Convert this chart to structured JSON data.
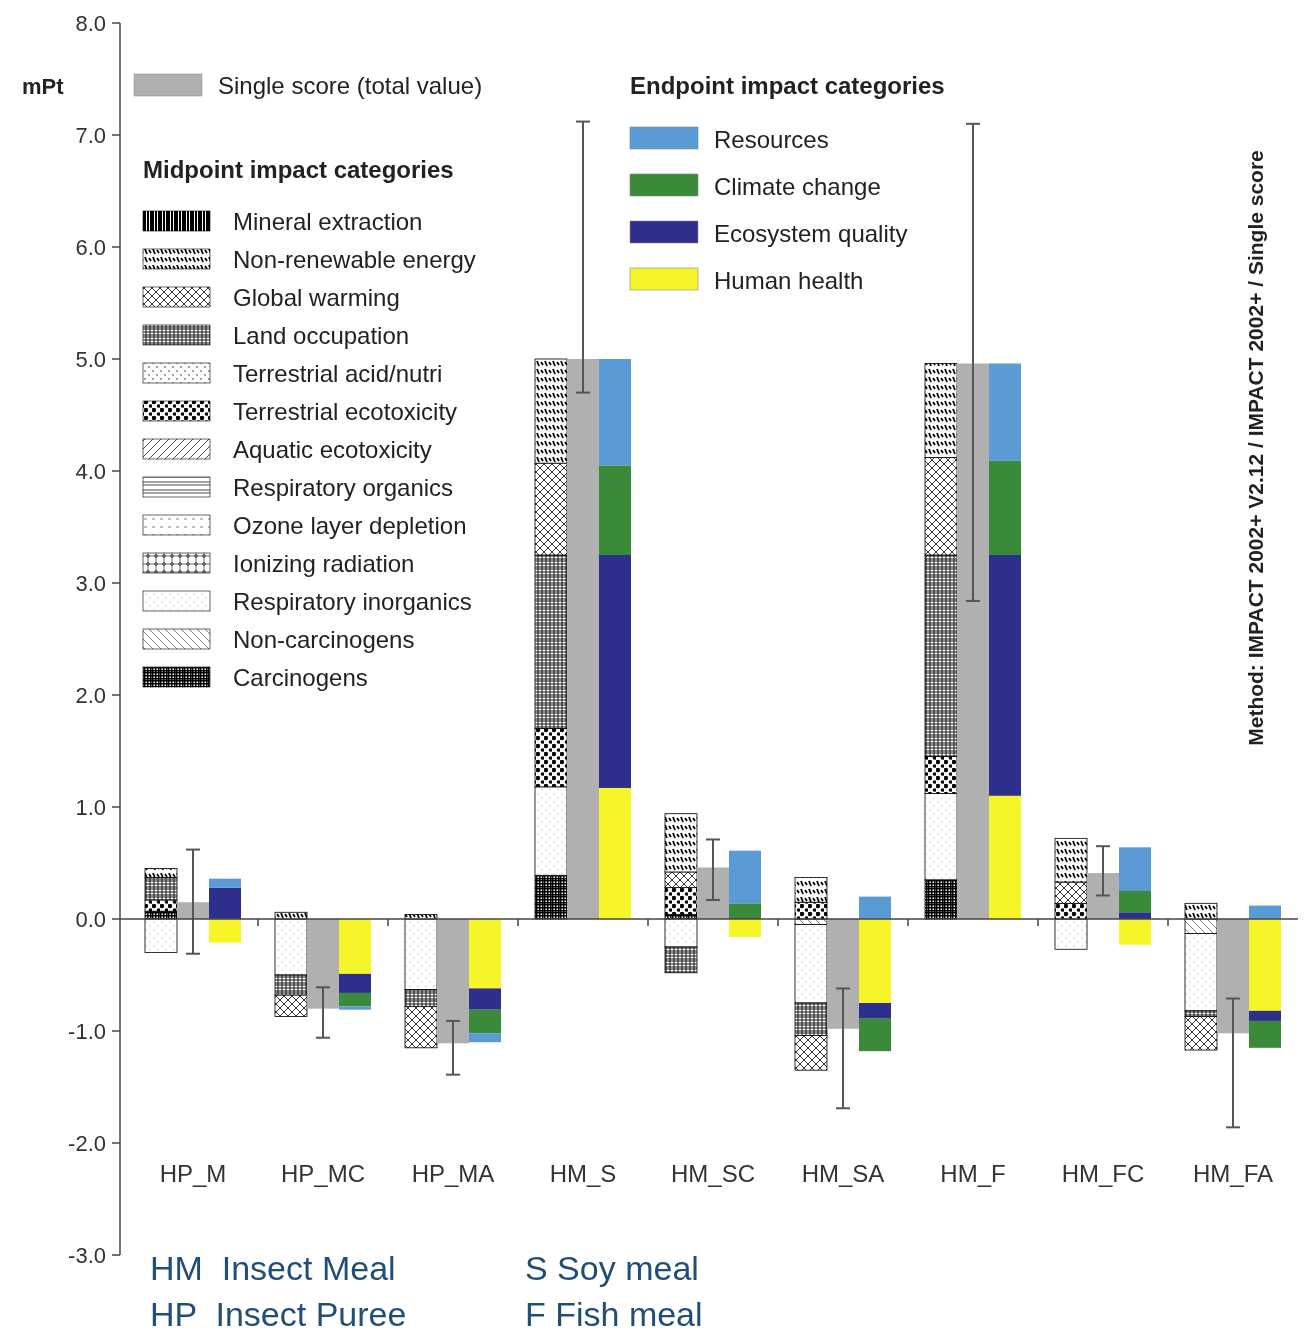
{
  "chart_data": {
    "type": "bar",
    "ylabel": "mPt",
    "legend": "top",
    "legend_title": [
      "Midpoint impact categories",
      "Endpoint impact categories"
    ],
    "categories": [
      "HP_M",
      "HP_MC",
      "HP_MA",
      "HM_S",
      "HM_SC",
      "HM_SA",
      "HM_F",
      "HM_FC",
      "HM_FA"
    ],
    "ylim": [
      -3,
      8
    ],
    "yticks": [
      {
        "value": -3,
        "label": "-3.0"
      },
      {
        "value": -2,
        "label": "-2.0"
      },
      {
        "value": -1,
        "label": "-1.0"
      },
      {
        "value": 0,
        "label": "0.0"
      },
      {
        "value": 1,
        "label": "1.0"
      },
      {
        "value": 2,
        "label": "2.0"
      },
      {
        "value": 3,
        "label": "3.0"
      },
      {
        "value": 4,
        "label": "4.0"
      },
      {
        "value": 5,
        "label": "5.0"
      },
      {
        "value": 6,
        "label": "6.0"
      },
      {
        "value": 7,
        "label": "7.0"
      },
      {
        "value": 8,
        "label": "8.0"
      }
    ],
    "series": [
      {
        "name": "Carcinogens",
        "color": "#000000",
        "values": [
          0.07,
          null,
          null,
          0.39,
          0.04,
          null,
          0.35,
          null,
          null
        ],
        "base": [
          0,
          null,
          null,
          0,
          0,
          null,
          0,
          null,
          null
        ]
      },
      {
        "name": "Non-carcinogens",
        "color": "#000000",
        "values": [
          null,
          null,
          null,
          null,
          null,
          -0.05,
          null,
          null,
          -0.13
        ],
        "base": [
          null,
          null,
          null,
          null,
          null,
          0,
          null,
          null,
          0
        ]
      },
      {
        "name": "Respiratory inorganics",
        "color": "#000000",
        "values": [
          -0.3,
          -0.5,
          -0.63,
          0.79,
          -0.25,
          -0.7,
          0.77,
          -0.27,
          -0.69
        ],
        "base": [
          0,
          0,
          0,
          0.39,
          0,
          -0.05,
          0.35,
          0,
          -0.13
        ]
      },
      {
        "name": "Ionizing radiation",
        "color": "#000000",
        "values": [
          null,
          null,
          null,
          null,
          null,
          null,
          null,
          null,
          null
        ],
        "base": [
          null,
          null,
          null,
          null,
          null,
          null,
          null,
          null,
          null
        ]
      },
      {
        "name": "Ozone layer depletion",
        "color": "#000000",
        "values": [
          null,
          null,
          null,
          null,
          null,
          null,
          null,
          null,
          null
        ],
        "base": [
          null,
          null,
          null,
          null,
          null,
          null,
          null,
          null,
          null
        ]
      },
      {
        "name": "Respiratory organics",
        "color": "#000000",
        "values": [
          null,
          null,
          null,
          null,
          null,
          null,
          null,
          null,
          null
        ],
        "base": [
          null,
          null,
          null,
          null,
          null,
          null,
          null,
          null,
          null
        ]
      },
      {
        "name": "Aquatic ecotoxicity",
        "color": "#000000",
        "values": [
          null,
          null,
          null,
          null,
          null,
          null,
          null,
          null,
          null
        ],
        "base": [
          null,
          null,
          null,
          null,
          null,
          null,
          null,
          null,
          null
        ]
      },
      {
        "name": "Terrestrial ecotoxicity",
        "color": "#000000",
        "values": [
          0.1,
          null,
          null,
          0.52,
          0.24,
          0.15,
          0.33,
          0.14,
          null
        ],
        "base": [
          0.07,
          null,
          null,
          1.18,
          0.04,
          0,
          1.12,
          0,
          null
        ]
      },
      {
        "name": "Terrestrial acid/nutri",
        "color": "#000000",
        "values": [
          null,
          null,
          null,
          null,
          null,
          null,
          null,
          null,
          null
        ],
        "base": [
          null,
          null,
          null,
          null,
          null,
          null,
          null,
          null,
          null
        ]
      },
      {
        "name": "Land occupation",
        "color": "#000000",
        "values": [
          0.2,
          -0.18,
          -0.15,
          1.55,
          -0.23,
          -0.29,
          1.8,
          null,
          -0.05
        ],
        "base": [
          0.17,
          -0.5,
          -0.63,
          1.7,
          -0.25,
          -0.75,
          1.45,
          null,
          -0.82
        ]
      },
      {
        "name": "Global warming",
        "color": "#000000",
        "values": [
          null,
          -0.19,
          -0.37,
          0.82,
          0.14,
          -0.31,
          0.87,
          0.19,
          -0.3
        ],
        "base": [
          null,
          -0.68,
          -0.78,
          3.25,
          0.28,
          -1.04,
          3.25,
          0.14,
          -0.87
        ]
      },
      {
        "name": "Non-renewable energy",
        "color": "#000000",
        "values": [
          0.08,
          0.06,
          0.04,
          0.93,
          0.52,
          0.22,
          0.84,
          0.39,
          0.14
        ],
        "base": [
          0.37,
          0,
          0,
          4.07,
          0.42,
          0.15,
          4.12,
          0.33,
          0
        ]
      },
      {
        "name": "Mineral extraction",
        "color": "#000000",
        "values": [
          null,
          null,
          null,
          null,
          null,
          null,
          null,
          null,
          null
        ],
        "base": [
          null,
          null,
          null,
          null,
          null,
          null,
          null,
          null,
          null
        ]
      },
      {
        "name": "Single score (total value)",
        "color": "#b0b0b0",
        "values": [
          0.15,
          -0.8,
          -1.11,
          5.0,
          0.46,
          -0.98,
          4.96,
          0.41,
          -1.02
        ],
        "errors": [
          [
            -0.31,
            0.62
          ],
          [
            -1.06,
            -0.61
          ],
          [
            -1.39,
            -0.91
          ],
          [
            4.7,
            7.12
          ],
          [
            0.17,
            0.71
          ],
          [
            -1.69,
            -0.62
          ],
          [
            2.84,
            7.1
          ],
          [
            0.21,
            0.65
          ],
          [
            -1.86,
            -0.71
          ]
        ]
      },
      {
        "name": "Human health",
        "color": "#f5f52a",
        "values": [
          -0.21,
          -0.49,
          -0.62,
          1.17,
          -0.16,
          -0.75,
          1.1,
          -0.23,
          -0.82
        ],
        "base": [
          0,
          0,
          0,
          0,
          0,
          0,
          0,
          0,
          0
        ]
      },
      {
        "name": "Ecosystem quality",
        "color": "#2e2e8c",
        "values": [
          0.28,
          -0.17,
          -0.19,
          2.08,
          null,
          -0.14,
          2.15,
          0.06,
          -0.09
        ],
        "base": [
          0,
          -0.49,
          -0.62,
          1.17,
          null,
          -0.75,
          1.1,
          0,
          -0.82
        ]
      },
      {
        "name": "Climate change",
        "color": "#3a8a3a",
        "values": [
          null,
          -0.12,
          -0.21,
          0.8,
          0.14,
          -0.29,
          0.84,
          0.19,
          -0.24
        ],
        "base": [
          null,
          -0.66,
          -0.81,
          3.25,
          0,
          -0.89,
          3.25,
          0.06,
          -0.91
        ]
      },
      {
        "name": "Resources",
        "color": "#5b9bd5",
        "values": [
          0.08,
          -0.03,
          -0.08,
          0.95,
          0.47,
          0.2,
          0.87,
          0.39,
          0.12
        ],
        "base": [
          0.28,
          -0.78,
          -1.02,
          4.05,
          0.14,
          0,
          4.09,
          0.25,
          0
        ]
      }
    ],
    "annotations": [
      "Method: IMPACT 2002+ V2.12 / IMPACT 2002+ / Single score",
      "HM  Insect Meal",
      "HP  Insect Puree",
      "S Soy meal",
      "F Fish meal"
    ]
  }
}
